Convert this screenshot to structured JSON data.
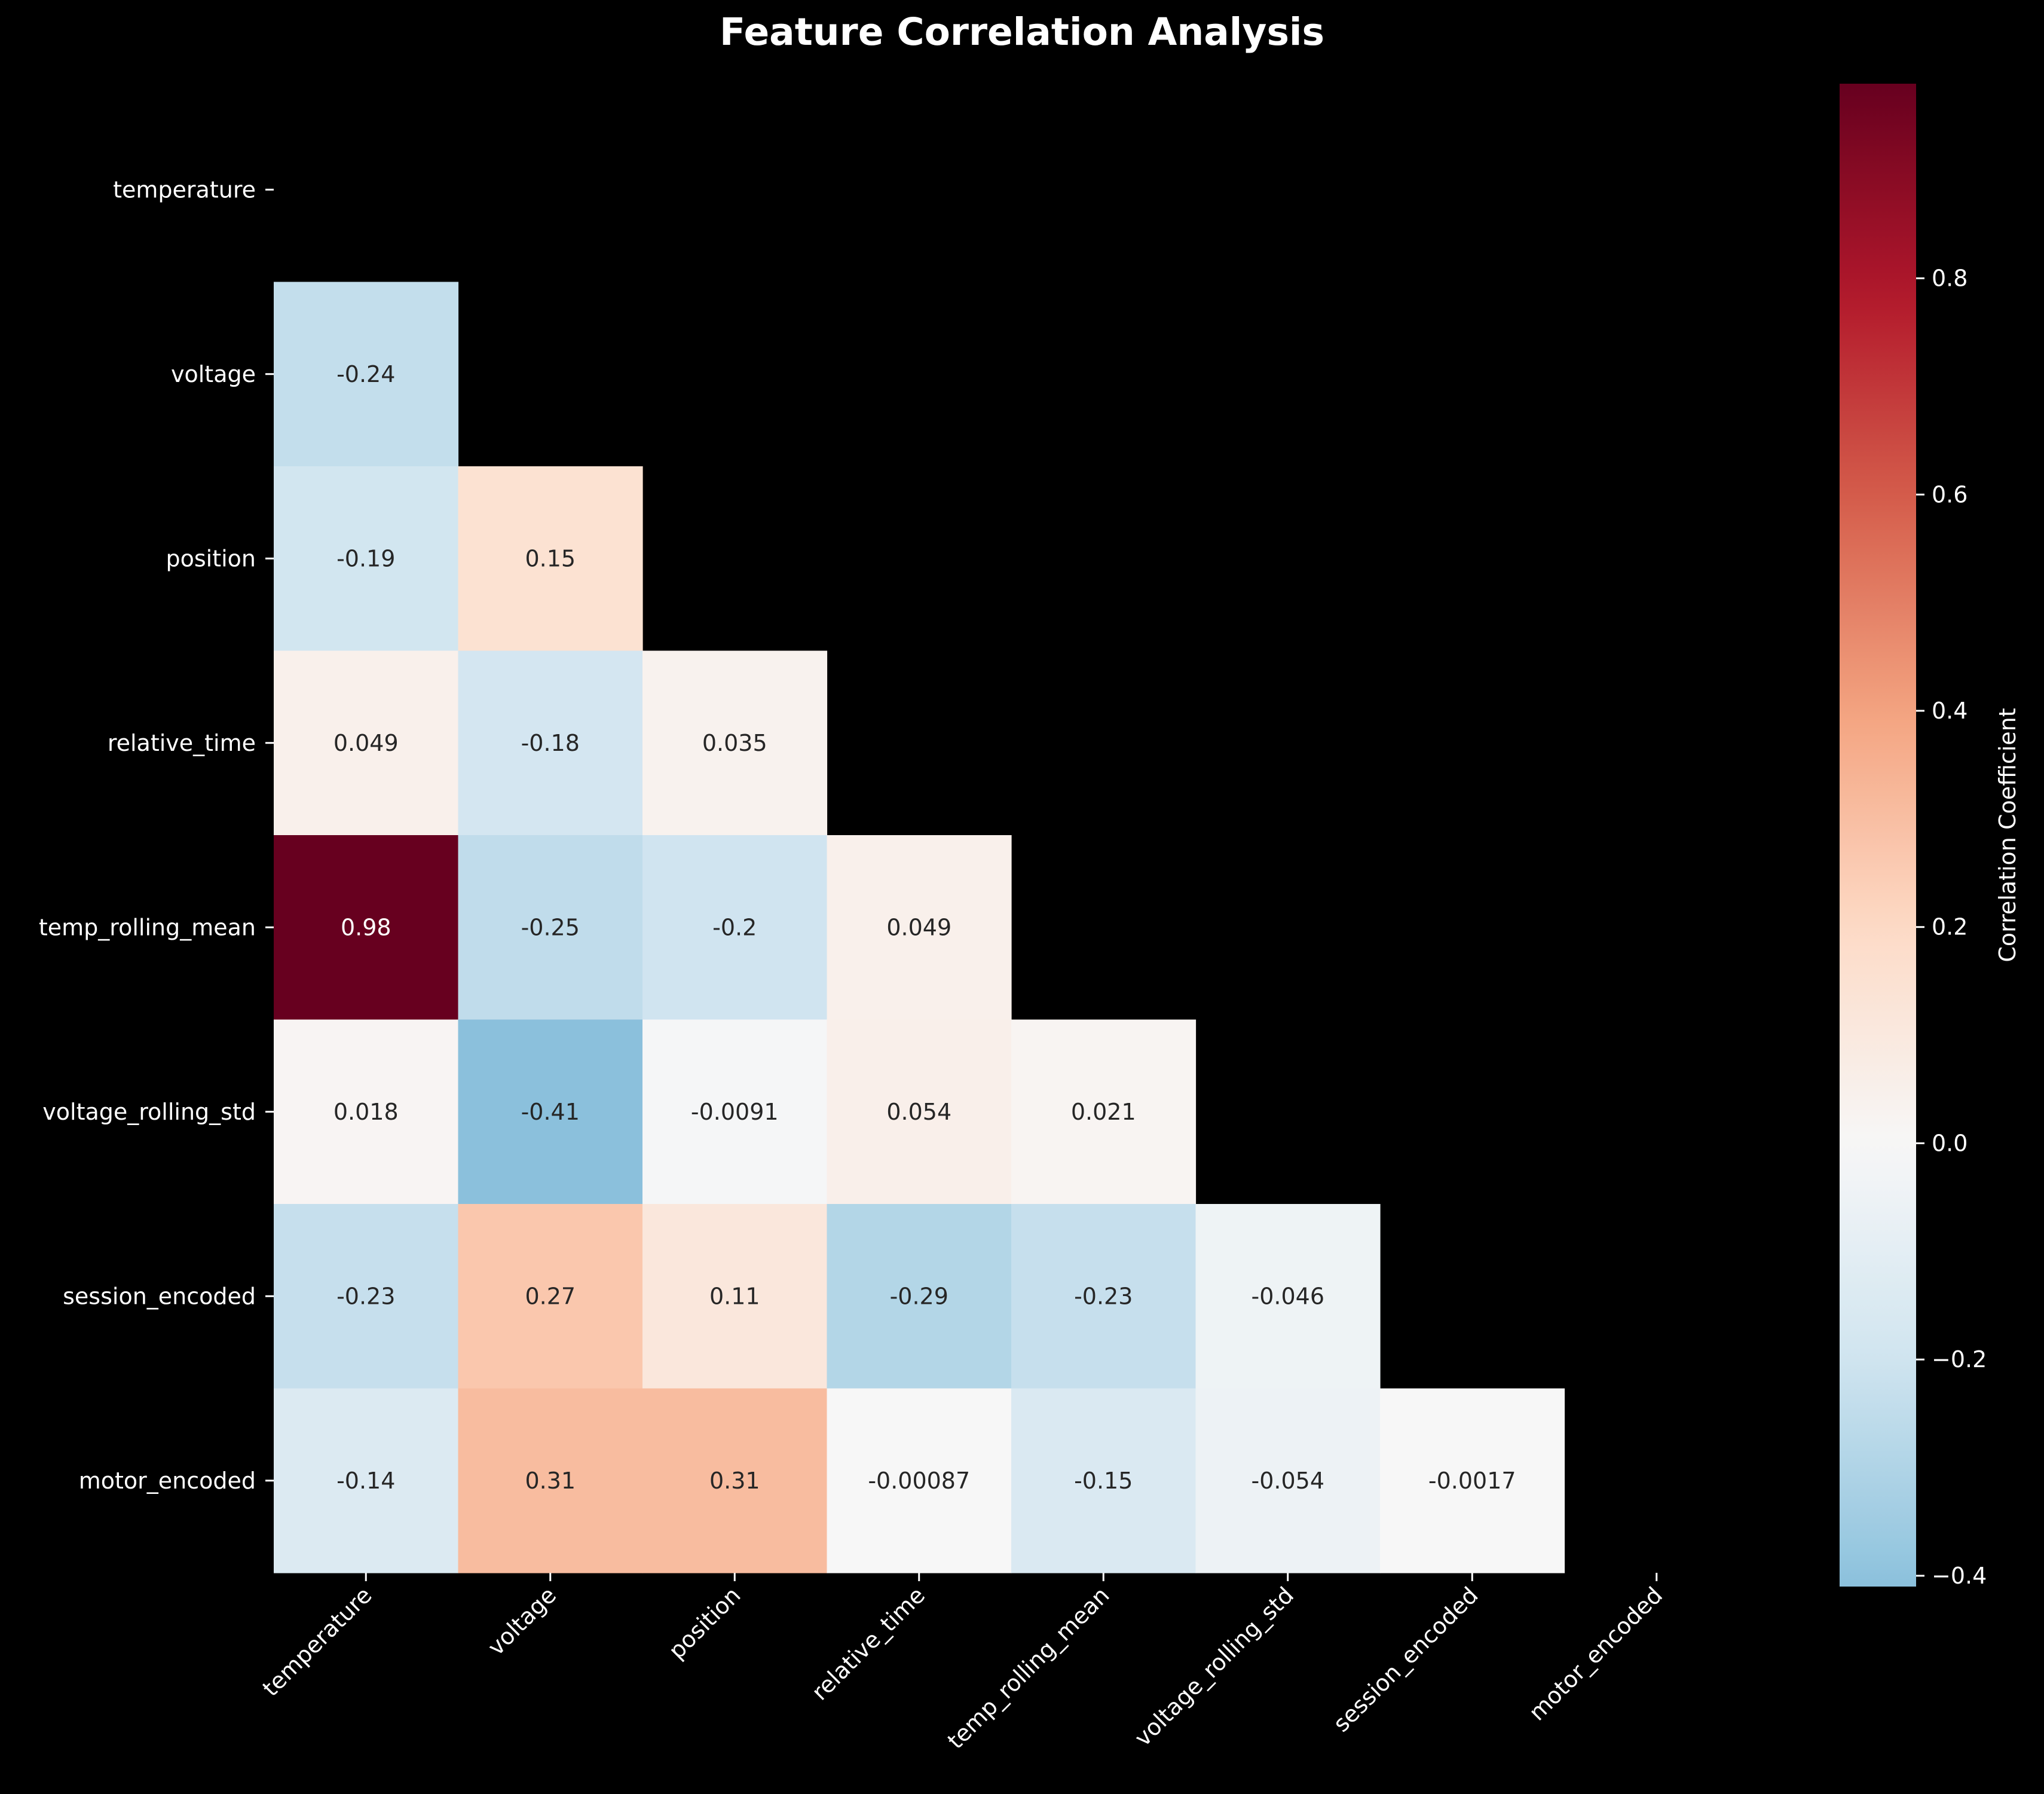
{
  "chart_data": {
    "type": "heatmap",
    "title": "Feature Correlation Analysis",
    "variables": [
      "temperature",
      "voltage",
      "position",
      "relative_time",
      "temp_rolling_mean",
      "voltage_rolling_std",
      "session_encoded",
      "motor_encoded"
    ],
    "mask": "upper-triangle-including-diagonal",
    "cells": [
      {
        "row": "voltage",
        "col": "temperature",
        "value": -0.24,
        "label": "-0.24"
      },
      {
        "row": "position",
        "col": "temperature",
        "value": -0.19,
        "label": "-0.19"
      },
      {
        "row": "position",
        "col": "voltage",
        "value": 0.15,
        "label": "0.15"
      },
      {
        "row": "relative_time",
        "col": "temperature",
        "value": 0.049,
        "label": "0.049"
      },
      {
        "row": "relative_time",
        "col": "voltage",
        "value": -0.18,
        "label": "-0.18"
      },
      {
        "row": "relative_time",
        "col": "position",
        "value": 0.035,
        "label": "0.035"
      },
      {
        "row": "temp_rolling_mean",
        "col": "temperature",
        "value": 0.98,
        "label": "0.98"
      },
      {
        "row": "temp_rolling_mean",
        "col": "voltage",
        "value": -0.25,
        "label": "-0.25"
      },
      {
        "row": "temp_rolling_mean",
        "col": "position",
        "value": -0.2,
        "label": "-0.2"
      },
      {
        "row": "temp_rolling_mean",
        "col": "relative_time",
        "value": 0.049,
        "label": "0.049"
      },
      {
        "row": "voltage_rolling_std",
        "col": "temperature",
        "value": 0.018,
        "label": "0.018"
      },
      {
        "row": "voltage_rolling_std",
        "col": "voltage",
        "value": -0.41,
        "label": "-0.41"
      },
      {
        "row": "voltage_rolling_std",
        "col": "position",
        "value": -0.0091,
        "label": "-0.0091"
      },
      {
        "row": "voltage_rolling_std",
        "col": "relative_time",
        "value": 0.054,
        "label": "0.054"
      },
      {
        "row": "voltage_rolling_std",
        "col": "temp_rolling_mean",
        "value": 0.021,
        "label": "0.021"
      },
      {
        "row": "session_encoded",
        "col": "temperature",
        "value": -0.23,
        "label": "-0.23"
      },
      {
        "row": "session_encoded",
        "col": "voltage",
        "value": 0.27,
        "label": "0.27"
      },
      {
        "row": "session_encoded",
        "col": "position",
        "value": 0.11,
        "label": "0.11"
      },
      {
        "row": "session_encoded",
        "col": "relative_time",
        "value": -0.29,
        "label": "-0.29"
      },
      {
        "row": "session_encoded",
        "col": "temp_rolling_mean",
        "value": -0.23,
        "label": "-0.23"
      },
      {
        "row": "session_encoded",
        "col": "voltage_rolling_std",
        "value": -0.046,
        "label": "-0.046"
      },
      {
        "row": "motor_encoded",
        "col": "temperature",
        "value": -0.14,
        "label": "-0.14"
      },
      {
        "row": "motor_encoded",
        "col": "voltage",
        "value": 0.31,
        "label": "0.31"
      },
      {
        "row": "motor_encoded",
        "col": "position",
        "value": 0.31,
        "label": "0.31"
      },
      {
        "row": "motor_encoded",
        "col": "relative_time",
        "value": -0.00087,
        "label": "-0.00087"
      },
      {
        "row": "motor_encoded",
        "col": "temp_rolling_mean",
        "value": -0.15,
        "label": "-0.15"
      },
      {
        "row": "motor_encoded",
        "col": "voltage_rolling_std",
        "value": -0.054,
        "label": "-0.054"
      },
      {
        "row": "motor_encoded",
        "col": "session_encoded",
        "value": -0.0017,
        "label": "-0.0017"
      }
    ],
    "colorbar": {
      "label": "Correlation Coefficient",
      "colormap": "RdBu_r",
      "vmin": -0.41,
      "vmax": 0.98,
      "center": 0,
      "ticks": [
        {
          "value": -0.4,
          "label": "−0.4"
        },
        {
          "value": -0.2,
          "label": "−0.2"
        },
        {
          "value": 0.0,
          "label": "0.0"
        },
        {
          "value": 0.2,
          "label": "0.2"
        },
        {
          "value": 0.4,
          "label": "0.4"
        },
        {
          "value": 0.6,
          "label": "0.6"
        },
        {
          "value": 0.8,
          "label": "0.8"
        }
      ]
    },
    "background": "#000000",
    "text_color": "#ffffff",
    "grid": false,
    "legend": "colorbar-right"
  }
}
